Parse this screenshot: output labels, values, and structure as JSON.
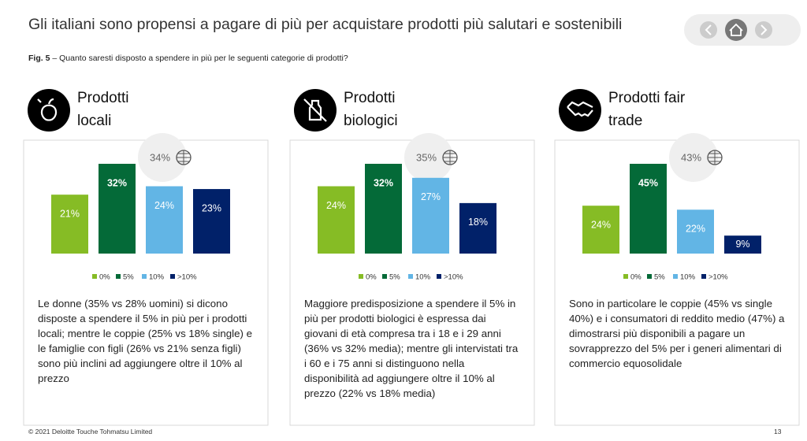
{
  "title": "Gli italiani sono propensi a pagare di più per acquistare prodotti più salutari e sostenibili",
  "figure": {
    "label": "Fig. 5",
    "caption": "– Quanto saresti disposto a spendere in più per le seguenti categorie di prodotti?"
  },
  "footer": {
    "copyright": "© 2021  Deloitte Touche Tohmatsu Limited",
    "page": "13"
  },
  "chart_data": [
    {
      "type": "bar",
      "title": "Prodotti locali",
      "categories": [
        "0%",
        "5%",
        "10%",
        ">10%"
      ],
      "colors": [
        "#86bc25",
        "#046a38",
        "#62b5e5",
        "#012169"
      ],
      "values": [
        21,
        32,
        24,
        23
      ],
      "value_labels": [
        "21%",
        "32%",
        "24%",
        "23%"
      ],
      "annotation": {
        "value": 34,
        "label": "34%"
      },
      "description": "Le donne (35% vs 28% uomini) si dicono disposte a spendere il 5% in più per i prodotti locali; mentre le coppie (25% vs 18% single) e le famiglie con figli (26% vs 21% senza figli) sono più inclini ad aggiungere oltre il 10% al prezzo"
    },
    {
      "type": "bar",
      "title": "Prodotti biologici",
      "categories": [
        "0%",
        "5%",
        "10%",
        ">10%"
      ],
      "colors": [
        "#86bc25",
        "#046a38",
        "#62b5e5",
        "#012169"
      ],
      "values": [
        24,
        32,
        27,
        18
      ],
      "value_labels": [
        "24%",
        "32%",
        "27%",
        "18%"
      ],
      "annotation": {
        "value": 35,
        "label": "35%"
      },
      "description": "Maggiore predisposizione a spendere il 5% in più per prodotti biologici è espressa dai giovani di età compresa tra i 18 e i 29 anni (36% vs 32% media); mentre gli intervistati tra i 60 e i 75 anni si distinguono nella disponibilità ad aggiungere oltre il 10% al prezzo (22% vs 18% media)"
    },
    {
      "type": "bar",
      "title": "Prodotti fair trade",
      "categories": [
        "0%",
        "5%",
        "10%",
        ">10%"
      ],
      "colors": [
        "#86bc25",
        "#046a38",
        "#62b5e5",
        "#012169"
      ],
      "values": [
        24,
        45,
        22,
        9
      ],
      "value_labels": [
        "24%",
        "45%",
        "22%",
        "9%"
      ],
      "annotation": {
        "value": 43,
        "label": "43%"
      },
      "description": "Sono in particolare le coppie (45% vs single 40%) e i consumatori di reddito medio (47%) a dimostrarsi più disponibili a pagare un sovrapprezzo del 5% per i generi alimentari di commercio equosolidale"
    }
  ]
}
